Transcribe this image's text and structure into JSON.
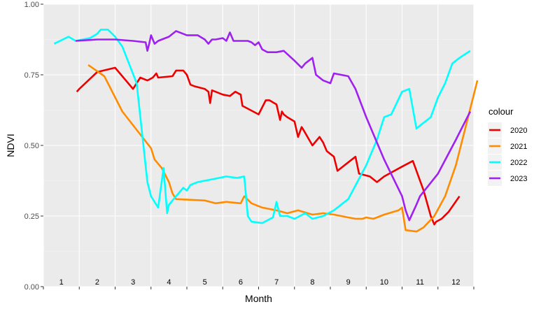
{
  "chart_data": {
    "type": "line",
    "xlabel": "Month",
    "ylabel": "NDVI",
    "ylim": [
      0,
      1
    ],
    "xlim": [
      0.5,
      12.5
    ],
    "y_ticks": [
      "0.00",
      "0.25",
      "0.50",
      "0.75",
      "1.00"
    ],
    "month_labels": [
      "1",
      "2",
      "3",
      "4",
      "5",
      "6",
      "7",
      "8",
      "9",
      "10",
      "11",
      "12"
    ],
    "grid": true,
    "legend": {
      "title": "colour",
      "position": "right"
    },
    "series": [
      {
        "name": "2020",
        "color": "#ee0000",
        "x": [
          1.43,
          1.5,
          2.0,
          2.5,
          3.0,
          3.2,
          3.4,
          3.55,
          3.65,
          3.7,
          4.1,
          4.2,
          4.4,
          4.5,
          4.6,
          4.7,
          5.0,
          5.1,
          5.15,
          5.2,
          5.5,
          5.7,
          5.85,
          6.0,
          6.05,
          6.5,
          6.7,
          6.8,
          7.0,
          7.1,
          7.15,
          7.2,
          7.3,
          7.5,
          7.6,
          7.7,
          7.75,
          8.0,
          8.2,
          8.3,
          8.4,
          8.6,
          8.7,
          9.0,
          9.2,
          9.3,
          9.6,
          9.8,
          10.0,
          10.5,
          10.8,
          11.1,
          11.3,
          11.4,
          11.45,
          11.6,
          11.8,
          12.1
        ],
        "y": [
          0.69,
          0.7,
          0.76,
          0.775,
          0.7,
          0.74,
          0.73,
          0.74,
          0.755,
          0.74,
          0.745,
          0.765,
          0.765,
          0.75,
          0.715,
          0.71,
          0.7,
          0.69,
          0.65,
          0.695,
          0.68,
          0.675,
          0.69,
          0.68,
          0.64,
          0.61,
          0.66,
          0.66,
          0.645,
          0.59,
          0.62,
          0.61,
          0.6,
          0.585,
          0.53,
          0.565,
          0.555,
          0.5,
          0.53,
          0.51,
          0.48,
          0.46,
          0.41,
          0.44,
          0.46,
          0.4,
          0.39,
          0.37,
          0.39,
          0.425,
          0.445,
          0.34,
          0.25,
          0.22,
          0.23,
          0.24,
          0.265,
          0.32
        ]
      },
      {
        "name": "2021",
        "color": "#ff8c00",
        "x": [
          1.75,
          2.2,
          2.7,
          3.5,
          3.6,
          3.8,
          3.9,
          4.0,
          4.1,
          4.2,
          5.0,
          5.3,
          5.6,
          6.0,
          6.1,
          6.3,
          6.6,
          7.0,
          7.3,
          7.6,
          8.0,
          8.3,
          8.6,
          9.0,
          9.2,
          9.4,
          9.5,
          9.7,
          10.0,
          10.4,
          10.5,
          10.6,
          10.9,
          11.1,
          11.4,
          11.7,
          12.0,
          12.3,
          12.6
        ],
        "y": [
          0.785,
          0.745,
          0.62,
          0.49,
          0.45,
          0.42,
          0.395,
          0.37,
          0.33,
          0.31,
          0.305,
          0.295,
          0.3,
          0.295,
          0.32,
          0.295,
          0.28,
          0.27,
          0.26,
          0.27,
          0.255,
          0.26,
          0.255,
          0.245,
          0.24,
          0.24,
          0.245,
          0.24,
          0.255,
          0.27,
          0.28,
          0.2,
          0.195,
          0.21,
          0.25,
          0.32,
          0.43,
          0.58,
          0.73
        ]
      },
      {
        "name": "2022",
        "color": "#00ffff",
        "x": [
          0.8,
          1.2,
          1.4,
          1.8,
          2.0,
          2.1,
          2.3,
          2.5,
          2.7,
          3.1,
          3.4,
          3.5,
          3.6,
          3.7,
          3.85,
          3.95,
          4.0,
          4.2,
          4.4,
          4.5,
          4.6,
          4.8,
          5.0,
          5.2,
          5.4,
          5.6,
          5.9,
          6.1,
          6.2,
          6.3,
          6.6,
          6.9,
          7.0,
          7.1,
          7.3,
          7.5,
          7.8,
          8.0,
          8.3,
          8.6,
          9.0,
          9.5,
          9.8,
          10.0,
          10.2,
          10.5,
          10.7,
          10.9,
          11.0,
          11.3,
          11.5,
          11.7,
          11.9,
          12.1,
          12.4
        ],
        "y": [
          0.86,
          0.885,
          0.87,
          0.88,
          0.895,
          0.91,
          0.91,
          0.885,
          0.85,
          0.72,
          0.37,
          0.32,
          0.3,
          0.28,
          0.42,
          0.26,
          0.29,
          0.32,
          0.35,
          0.34,
          0.36,
          0.37,
          0.375,
          0.38,
          0.385,
          0.39,
          0.385,
          0.39,
          0.25,
          0.23,
          0.225,
          0.245,
          0.3,
          0.25,
          0.25,
          0.24,
          0.26,
          0.24,
          0.25,
          0.27,
          0.31,
          0.43,
          0.52,
          0.6,
          0.61,
          0.69,
          0.7,
          0.56,
          0.57,
          0.6,
          0.67,
          0.72,
          0.79,
          0.81,
          0.835
        ]
      },
      {
        "name": "2023",
        "color": "#a020f0",
        "x": [
          1.4,
          2.0,
          2.5,
          3.0,
          3.35,
          3.4,
          3.45,
          3.5,
          3.6,
          3.7,
          3.8,
          4.0,
          4.2,
          4.5,
          4.8,
          5.0,
          5.1,
          5.2,
          5.3,
          5.5,
          5.6,
          5.7,
          5.8,
          6.0,
          6.2,
          6.3,
          6.4,
          6.5,
          6.6,
          6.75,
          6.8,
          7.0,
          7.2,
          7.5,
          7.7,
          7.8,
          8.0,
          8.1,
          8.3,
          8.5,
          8.6,
          9.0,
          9.2,
          9.5,
          10.0,
          10.5,
          10.6,
          10.7,
          10.9,
          11.0,
          11.5,
          12.0,
          12.4
        ],
        "y": [
          0.87,
          0.875,
          0.875,
          0.87,
          0.865,
          0.835,
          0.86,
          0.89,
          0.86,
          0.87,
          0.875,
          0.885,
          0.905,
          0.89,
          0.89,
          0.875,
          0.86,
          0.875,
          0.875,
          0.88,
          0.87,
          0.9,
          0.87,
          0.87,
          0.87,
          0.865,
          0.855,
          0.865,
          0.84,
          0.83,
          0.83,
          0.83,
          0.835,
          0.8,
          0.775,
          0.79,
          0.81,
          0.75,
          0.73,
          0.72,
          0.755,
          0.745,
          0.7,
          0.6,
          0.45,
          0.32,
          0.27,
          0.235,
          0.29,
          0.32,
          0.4,
          0.52,
          0.62
        ]
      }
    ]
  }
}
